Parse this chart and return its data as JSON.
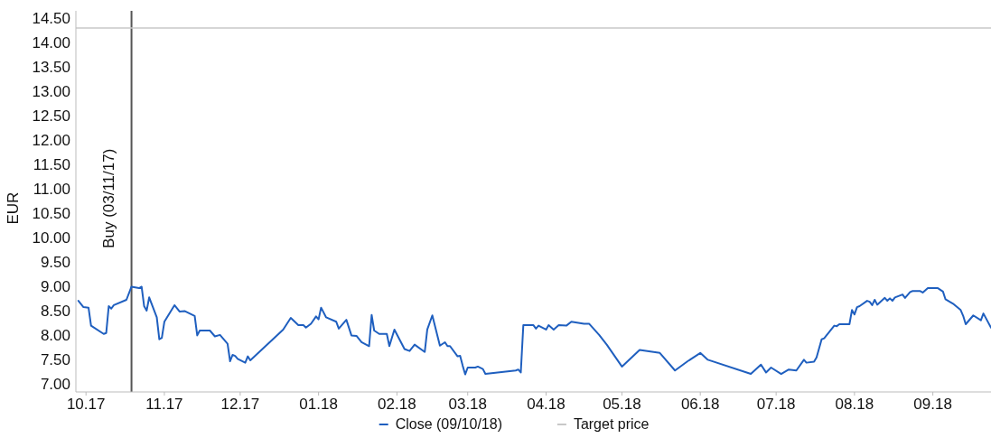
{
  "chart_data": {
    "type": "line",
    "ylabel": "EUR",
    "legend": "bottom",
    "grid": false,
    "marker": "none",
    "line_style": "solid",
    "xlim": [
      "2017-10-12",
      "2018-10-09"
    ],
    "ylim": [
      6.83,
      14.65
    ],
    "xticks": [
      {
        "value": "2017-10-16",
        "label": "10.17"
      },
      {
        "value": "2017-11-16",
        "label": "11.17"
      },
      {
        "value": "2017-12-16",
        "label": "12.17"
      },
      {
        "value": "2018-01-16",
        "label": "01.18"
      },
      {
        "value": "2018-02-16",
        "label": "02.18"
      },
      {
        "value": "2018-03-16",
        "label": "03.18"
      },
      {
        "value": "2018-04-16",
        "label": "04.18"
      },
      {
        "value": "2018-05-16",
        "label": "05.18"
      },
      {
        "value": "2018-06-16",
        "label": "06.18"
      },
      {
        "value": "2018-07-16",
        "label": "07.18"
      },
      {
        "value": "2018-08-16",
        "label": "08.18"
      },
      {
        "value": "2018-09-16",
        "label": "09.18"
      }
    ],
    "yticks": [
      {
        "value": 7,
        "label": "7.00"
      },
      {
        "value": 7.5,
        "label": "7.50"
      },
      {
        "value": 8,
        "label": "8.00"
      },
      {
        "value": 8.5,
        "label": "8.50"
      },
      {
        "value": 9,
        "label": "9.00"
      },
      {
        "value": 9.5,
        "label": "9.50"
      },
      {
        "value": 10,
        "label": "10.00"
      },
      {
        "value": 10.5,
        "label": "10.50"
      },
      {
        "value": 11,
        "label": "11.00"
      },
      {
        "value": 11.5,
        "label": "11.50"
      },
      {
        "value": 12,
        "label": "12.00"
      },
      {
        "value": 12.5,
        "label": "12.50"
      },
      {
        "value": 13,
        "label": "13.00"
      },
      {
        "value": 13.5,
        "label": "13.50"
      },
      {
        "value": 14,
        "label": "14.00"
      },
      {
        "value": 14.5,
        "label": "14.50"
      }
    ],
    "ref_lines": [
      {
        "axis": "x",
        "value": "2017-11-03",
        "label": "Buy (03/11/17)",
        "color": "#555555"
      },
      {
        "axis": "y",
        "value": 14.3,
        "label": "Target price",
        "color": "#c8c8c8"
      }
    ],
    "series": [
      {
        "name": "Close (09/10/18)",
        "color": "#1f5fbf",
        "x": [
          "2017-10-13",
          "2017-10-15",
          "2017-10-17",
          "2017-10-18",
          "2017-10-23",
          "2017-10-24",
          "2017-10-25",
          "2017-10-26",
          "2017-10-27",
          "2017-11-01",
          "2017-11-03",
          "2017-11-06",
          "2017-11-07",
          "2017-11-08",
          "2017-11-09",
          "2017-11-10",
          "2017-11-13",
          "2017-11-14",
          "2017-11-15",
          "2017-11-16",
          "2017-11-20",
          "2017-11-22",
          "2017-11-24",
          "2017-11-28",
          "2017-11-29",
          "2017-11-30",
          "2017-12-04",
          "2017-12-06",
          "2017-12-08",
          "2017-12-11",
          "2017-12-12",
          "2017-12-13",
          "2017-12-14",
          "2017-12-15",
          "2017-12-18",
          "2017-12-19",
          "2017-12-20",
          "2018-01-02",
          "2018-01-05",
          "2018-01-08",
          "2018-01-10",
          "2018-01-11",
          "2018-01-13",
          "2018-01-15",
          "2018-01-16",
          "2018-01-17",
          "2018-01-19",
          "2018-01-23",
          "2018-01-24",
          "2018-01-27",
          "2018-01-29",
          "2018-01-31",
          "2018-02-02",
          "2018-02-05",
          "2018-02-06",
          "2018-02-07",
          "2018-02-09",
          "2018-02-12",
          "2018-02-13",
          "2018-02-15",
          "2018-02-19",
          "2018-02-21",
          "2018-02-23",
          "2018-02-27",
          "2018-02-28",
          "2018-03-02",
          "2018-03-05",
          "2018-03-07",
          "2018-03-08",
          "2018-03-09",
          "2018-03-12",
          "2018-03-13",
          "2018-03-14",
          "2018-03-15",
          "2018-03-16",
          "2018-03-19",
          "2018-03-20",
          "2018-03-22",
          "2018-03-23",
          "2018-04-04",
          "2018-04-05",
          "2018-04-06",
          "2018-04-07",
          "2018-04-11",
          "2018-04-12",
          "2018-04-13",
          "2018-04-16",
          "2018-04-17",
          "2018-04-19",
          "2018-04-21",
          "2018-04-24",
          "2018-04-26",
          "2018-05-01",
          "2018-05-03",
          "2018-05-07",
          "2018-05-10",
          "2018-05-16",
          "2018-05-23",
          "2018-05-31",
          "2018-06-06",
          "2018-06-11",
          "2018-06-16",
          "2018-06-19",
          "2018-07-06",
          "2018-07-10",
          "2018-07-12",
          "2018-07-14",
          "2018-07-18",
          "2018-07-21",
          "2018-07-24",
          "2018-07-27",
          "2018-07-28",
          "2018-07-31",
          "2018-08-01",
          "2018-08-03",
          "2018-08-04",
          "2018-08-08",
          "2018-08-09",
          "2018-08-10",
          "2018-08-14",
          "2018-08-15",
          "2018-08-16",
          "2018-08-17",
          "2018-08-18",
          "2018-08-21",
          "2018-08-22",
          "2018-08-23",
          "2018-08-24",
          "2018-08-25",
          "2018-08-28",
          "2018-08-29",
          "2018-08-30",
          "2018-08-31",
          "2018-09-01",
          "2018-09-04",
          "2018-09-05",
          "2018-09-07",
          "2018-09-08",
          "2018-09-11",
          "2018-09-12",
          "2018-09-14",
          "2018-09-18",
          "2018-09-20",
          "2018-09-21",
          "2018-09-24",
          "2018-09-27",
          "2018-09-28",
          "2018-09-29",
          "2018-10-02",
          "2018-10-05",
          "2018-10-06",
          "2018-10-09"
        ],
        "values": [
          8.7,
          8.57,
          8.56,
          8.19,
          8.02,
          8.04,
          8.59,
          8.54,
          8.61,
          8.72,
          8.99,
          8.96,
          8.99,
          8.59,
          8.5,
          8.77,
          8.36,
          7.91,
          7.94,
          8.27,
          8.61,
          8.48,
          8.49,
          8.39,
          7.99,
          8.09,
          8.09,
          7.97,
          8.0,
          7.82,
          7.46,
          7.59,
          7.57,
          7.51,
          7.43,
          7.56,
          7.48,
          8.11,
          8.35,
          8.2,
          8.2,
          8.15,
          8.23,
          8.38,
          8.32,
          8.56,
          8.36,
          8.27,
          8.13,
          8.31,
          7.99,
          7.98,
          7.85,
          7.77,
          8.41,
          8.09,
          8.02,
          8.02,
          7.77,
          8.11,
          7.71,
          7.67,
          7.8,
          7.65,
          8.11,
          8.4,
          7.78,
          7.85,
          7.77,
          7.77,
          7.56,
          7.57,
          7.37,
          7.19,
          7.33,
          7.33,
          7.35,
          7.3,
          7.2,
          7.27,
          7.29,
          7.23,
          8.2,
          8.2,
          8.13,
          8.19,
          8.11,
          8.2,
          8.11,
          8.2,
          8.19,
          8.27,
          8.23,
          8.23,
          8.0,
          7.8,
          7.35,
          7.69,
          7.63,
          7.27,
          7.46,
          7.63,
          7.49,
          7.2,
          7.39,
          7.23,
          7.33,
          7.2,
          7.29,
          7.27,
          7.49,
          7.43,
          7.45,
          7.54,
          7.91,
          7.93,
          8.19,
          8.18,
          8.22,
          8.22,
          8.51,
          8.42,
          8.57,
          8.59,
          8.7,
          8.68,
          8.61,
          8.72,
          8.62,
          8.76,
          8.7,
          8.75,
          8.7,
          8.77,
          8.83,
          8.76,
          8.88,
          8.9,
          8.9,
          8.87,
          8.96,
          8.96,
          8.89,
          8.73,
          8.64,
          8.51,
          8.39,
          8.22,
          8.4,
          8.3,
          8.44,
          8.15
        ]
      }
    ]
  }
}
